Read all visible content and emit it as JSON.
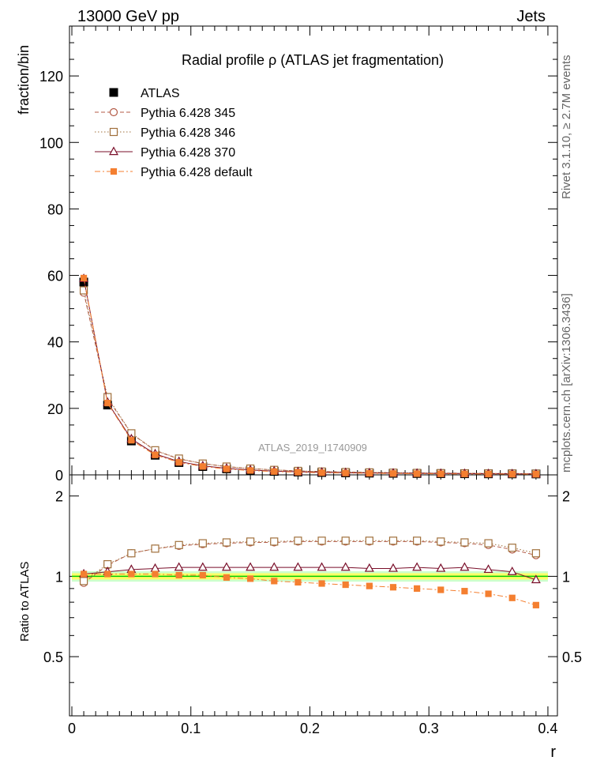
{
  "header": {
    "left": "13000 GeV pp",
    "right": "Jets"
  },
  "side_labels": {
    "rivet": "Rivet 3.1.10, ≥ 2.7M events",
    "mcplots": "mcplots.cern.ch [arXiv:1306.3436]"
  },
  "watermark": "ATLAS_2019_I1740909",
  "chart_data": [
    {
      "type": "scatter",
      "title": "Radial profile  ρ (ATLAS jet fragmentation)",
      "ylabel": "fraction/bin",
      "xlabel": "",
      "xlim": [
        -0.002,
        0.408
      ],
      "ylim": [
        0,
        135
      ],
      "legend_position": "top-left",
      "x": [
        0.01,
        0.03,
        0.05,
        0.07,
        0.09,
        0.11,
        0.13,
        0.15,
        0.17,
        0.19,
        0.21,
        0.23,
        0.25,
        0.27,
        0.29,
        0.31,
        0.33,
        0.35,
        0.37,
        0.39
      ],
      "x_ticks": [
        "0",
        "0.1",
        "0.2",
        "0.3",
        "0.4"
      ],
      "y_ticks": [
        "0",
        "20",
        "40",
        "60",
        "80",
        "100",
        "120"
      ],
      "series": [
        {
          "name": "ATLAS",
          "color": "#000000",
          "marker": "filled-square",
          "line": "none",
          "values": [
            58.0,
            21.0,
            10.2,
            5.9,
            3.7,
            2.5,
            1.8,
            1.35,
            1.05,
            0.85,
            0.7,
            0.6,
            0.52,
            0.46,
            0.41,
            0.37,
            0.34,
            0.31,
            0.29,
            0.28
          ]
        },
        {
          "name": "Pythia 6.428 345",
          "color": "#b35a46",
          "marker": "open-circle",
          "line": "dashed",
          "values": [
            54.8,
            23.0,
            12.4,
            7.3,
            4.8,
            3.4,
            2.5,
            1.9,
            1.5,
            1.2,
            1.0,
            0.85,
            0.74,
            0.65,
            0.58,
            0.52,
            0.47,
            0.43,
            0.39,
            0.35
          ]
        },
        {
          "name": "Pythia 6.428 346",
          "color": "#a0703c",
          "marker": "open-square",
          "line": "dotted",
          "values": [
            55.5,
            23.4,
            12.5,
            7.4,
            4.9,
            3.4,
            2.5,
            1.9,
            1.5,
            1.2,
            1.0,
            0.86,
            0.75,
            0.66,
            0.59,
            0.53,
            0.48,
            0.44,
            0.4,
            0.36
          ]
        },
        {
          "name": "Pythia 6.428 370",
          "color": "#7a0f2a",
          "marker": "open-triangle",
          "line": "solid",
          "values": [
            59.0,
            21.8,
            10.8,
            6.3,
            4.0,
            2.7,
            1.95,
            1.46,
            1.13,
            0.92,
            0.76,
            0.65,
            0.56,
            0.5,
            0.44,
            0.4,
            0.37,
            0.33,
            0.3,
            0.27
          ]
        },
        {
          "name": "Pythia 6.428 default",
          "color": "#f47f30",
          "marker": "filled-square",
          "line": "dash-dot",
          "values": [
            59.2,
            21.6,
            10.4,
            6.0,
            3.75,
            2.52,
            1.78,
            1.31,
            1.0,
            0.8,
            0.65,
            0.55,
            0.47,
            0.41,
            0.36,
            0.32,
            0.29,
            0.26,
            0.23,
            0.22
          ]
        }
      ]
    },
    {
      "type": "scatter",
      "title": "",
      "ylabel": "Ratio to ATLAS",
      "xlabel": "r",
      "xlim": [
        -0.002,
        0.408
      ],
      "ylim": [
        0.3,
        2.4
      ],
      "y_log_scale": true,
      "x": [
        0.01,
        0.03,
        0.05,
        0.07,
        0.09,
        0.11,
        0.13,
        0.15,
        0.17,
        0.19,
        0.21,
        0.23,
        0.25,
        0.27,
        0.29,
        0.31,
        0.33,
        0.35,
        0.37,
        0.39
      ],
      "x_ticks": [
        "0",
        "0.1",
        "0.2",
        "0.3",
        "0.4"
      ],
      "y_ticks": [
        "0.5",
        "1",
        "2"
      ],
      "reference_band": {
        "color_inner": "#00cc00",
        "color_mid": "#ffff66",
        "color_outer": "#ccffcc",
        "inner_halfwidth": 0.01,
        "outer_halfwidth": 0.045
      },
      "series": [
        {
          "name": "Pythia 6.428 345",
          "color": "#b35a46",
          "marker": "open-circle",
          "line": "dashed",
          "values": [
            0.945,
            1.1,
            1.22,
            1.27,
            1.3,
            1.32,
            1.33,
            1.34,
            1.34,
            1.35,
            1.35,
            1.35,
            1.35,
            1.35,
            1.35,
            1.34,
            1.33,
            1.31,
            1.26,
            1.2
          ]
        },
        {
          "name": "Pythia 6.428 346",
          "color": "#a0703c",
          "marker": "open-square",
          "line": "dotted",
          "values": [
            0.96,
            1.11,
            1.22,
            1.27,
            1.31,
            1.33,
            1.34,
            1.35,
            1.35,
            1.36,
            1.36,
            1.36,
            1.36,
            1.36,
            1.36,
            1.35,
            1.34,
            1.33,
            1.28,
            1.22
          ]
        },
        {
          "name": "Pythia 6.428 370",
          "color": "#7a0f2a",
          "marker": "open-triangle",
          "line": "solid",
          "values": [
            1.02,
            1.04,
            1.06,
            1.07,
            1.08,
            1.08,
            1.08,
            1.08,
            1.08,
            1.08,
            1.08,
            1.08,
            1.07,
            1.07,
            1.08,
            1.07,
            1.08,
            1.06,
            1.04,
            0.97
          ]
        },
        {
          "name": "Pythia 6.428 default",
          "color": "#f47f30",
          "marker": "filled-square",
          "line": "dash-dot",
          "values": [
            1.02,
            1.02,
            1.02,
            1.02,
            1.01,
            1.01,
            0.99,
            0.98,
            0.96,
            0.95,
            0.94,
            0.93,
            0.92,
            0.91,
            0.9,
            0.89,
            0.88,
            0.86,
            0.83,
            0.78
          ]
        }
      ]
    }
  ]
}
